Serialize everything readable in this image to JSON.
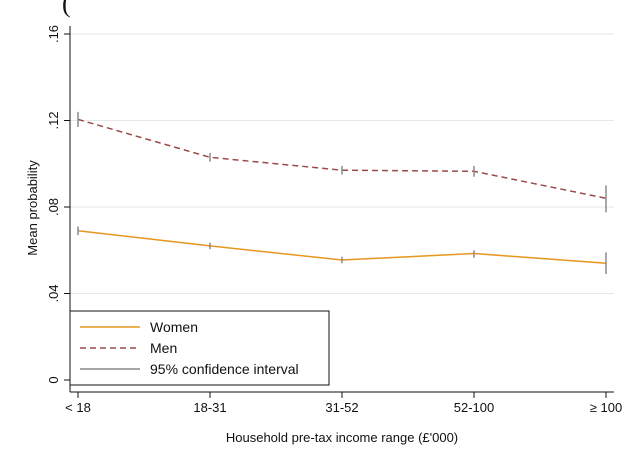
{
  "header_fragment": "(",
  "chart_data": {
    "type": "line",
    "categories": [
      "< 18",
      "18-31",
      "31-52",
      "52-100",
      "≥ 100"
    ],
    "xlabel": "Household pre-tax income range (£'000)",
    "ylabel": "Mean probability",
    "ylim": [
      0,
      0.16
    ],
    "yticks": [
      0,
      0.04,
      0.08,
      0.12,
      0.16
    ],
    "ytick_labels": [
      "0",
      ".04",
      ".08",
      ".12",
      ".16"
    ],
    "grid": true,
    "legend_position": "bottom-left",
    "series": [
      {
        "name": "Women",
        "color": "#e8961e",
        "line_style": "solid",
        "values": [
          0.069,
          0.062,
          0.0555,
          0.0585,
          0.054
        ],
        "ci_low": [
          0.067,
          0.0605,
          0.054,
          0.0565,
          0.049
        ],
        "ci_high": [
          0.071,
          0.0635,
          0.057,
          0.06,
          0.059
        ]
      },
      {
        "name": "Men",
        "color": "#9b4a4a",
        "line_style": "dashed",
        "values": [
          0.1205,
          0.103,
          0.097,
          0.0965,
          0.084
        ],
        "ci_low": [
          0.117,
          0.101,
          0.095,
          0.094,
          0.0775
        ],
        "ci_high": [
          0.124,
          0.105,
          0.099,
          0.099,
          0.09
        ]
      }
    ],
    "legend": [
      {
        "label": "Women",
        "color": "#e8961e",
        "style": "solid"
      },
      {
        "label": "Men",
        "color": "#9b4a4a",
        "style": "dashed"
      },
      {
        "label": "95% confidence interval",
        "color": "#888888",
        "style": "solid"
      }
    ]
  }
}
